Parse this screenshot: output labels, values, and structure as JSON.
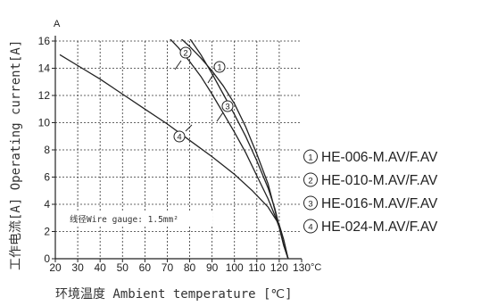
{
  "chart_data": {
    "type": "line",
    "ylabel": "工作电流[A] Operating current[A]",
    "xlabel": "环境温度 Ambient temperature [℃]",
    "y_unit": "A",
    "x_unit": "°C",
    "xlim": [
      20,
      130
    ],
    "ylim": [
      0,
      16
    ],
    "x_ticks": [
      "20",
      "30",
      "40",
      "50",
      "60",
      "70",
      "80",
      "90",
      "100",
      "110",
      "120",
      "130"
    ],
    "y_ticks": [
      "0",
      "2",
      "4",
      "6",
      "8",
      "10",
      "12",
      "14",
      "16"
    ],
    "grid": true,
    "note": "线径Wire gauge: 1.5mm²",
    "legend_position": "right",
    "series": [
      {
        "marker": "①",
        "name": "HE-006-M.AV/F.AV",
        "points": [
          [
            76,
            16.2
          ],
          [
            80,
            15.6
          ],
          [
            85,
            14.75
          ],
          [
            90,
            13.8
          ],
          [
            95,
            12.7
          ],
          [
            100,
            11.4
          ],
          [
            105,
            9.7
          ],
          [
            110,
            7.7
          ],
          [
            115,
            5.5
          ],
          [
            118,
            3.6
          ],
          [
            120,
            2.3
          ],
          [
            122,
            1.0
          ],
          [
            124,
            0
          ]
        ]
      },
      {
        "marker": "②",
        "name": "HE-010-M.AV/F.AV",
        "points": [
          [
            71,
            16.2
          ],
          [
            75,
            15.5
          ],
          [
            80,
            14.5
          ],
          [
            85,
            13.4
          ],
          [
            90,
            12.1
          ],
          [
            95,
            10.7
          ],
          [
            100,
            9.3
          ],
          [
            105,
            7.8
          ],
          [
            110,
            6.1
          ],
          [
            115,
            4.4
          ],
          [
            118,
            3.2
          ],
          [
            120,
            2.3
          ],
          [
            122,
            1.0
          ],
          [
            124,
            0
          ]
        ]
      },
      {
        "marker": "③",
        "name": "HE-016-M.AV/F.AV",
        "points": [
          [
            80,
            16.2
          ],
          [
            85,
            15.0
          ],
          [
            90,
            13.6
          ],
          [
            95,
            12.1
          ],
          [
            100,
            10.6
          ],
          [
            105,
            9.0
          ],
          [
            110,
            7.2
          ],
          [
            115,
            5.2
          ],
          [
            118,
            3.7
          ],
          [
            120,
            2.4
          ],
          [
            122,
            1.0
          ],
          [
            124,
            0
          ]
        ]
      },
      {
        "marker": "④",
        "name": "HE-024-M.AV/F.AV",
        "points": [
          [
            22,
            15.0
          ],
          [
            30,
            14.2
          ],
          [
            40,
            13.2
          ],
          [
            50,
            12.1
          ],
          [
            60,
            11.0
          ],
          [
            70,
            9.9
          ],
          [
            80,
            8.7
          ],
          [
            90,
            7.5
          ],
          [
            100,
            6.2
          ],
          [
            108,
            5.0
          ],
          [
            115,
            3.8
          ],
          [
            120,
            2.5
          ],
          [
            122,
            1.4
          ],
          [
            124,
            0
          ]
        ]
      }
    ]
  }
}
